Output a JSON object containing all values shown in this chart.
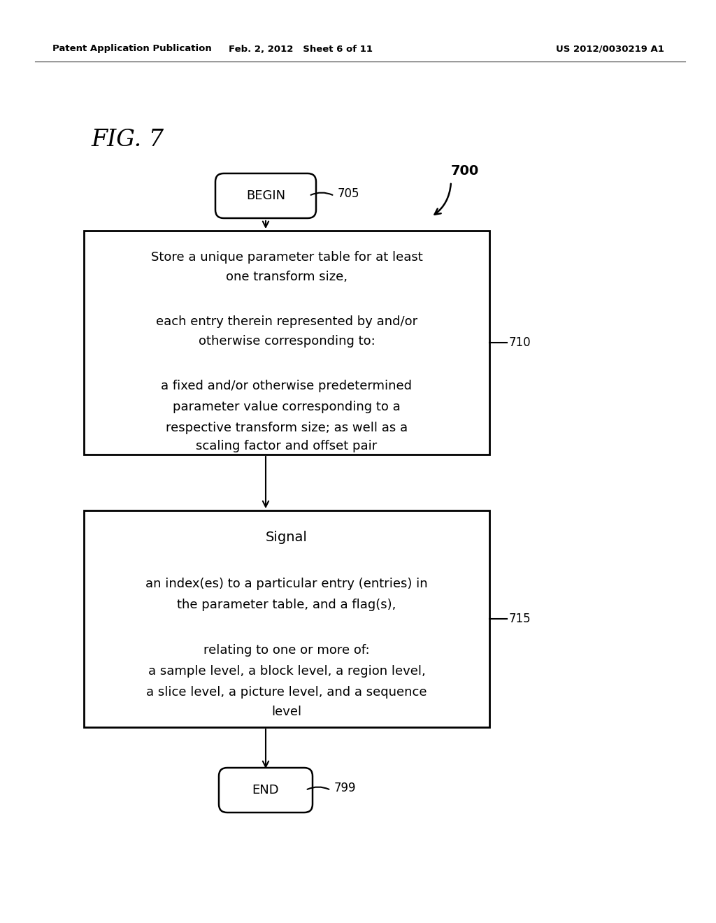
{
  "header_left": "Patent Application Publication",
  "header_center": "Feb. 2, 2012   Sheet 6 of 11",
  "header_right": "US 2012/0030219 A1",
  "fig_label": "FIG. 7",
  "begin_label": "BEGIN",
  "begin_ref": "705",
  "flow_ref": "700",
  "box1_lines": [
    "Store a unique parameter table for at least",
    "one transform size,",
    "",
    "each entry therein represented by and/or",
    "otherwise corresponding to:",
    "",
    "a fixed and/or otherwise predetermined",
    "parameter value corresponding to a",
    "respective transform size; as well as a",
    "scaling factor and offset pair"
  ],
  "box1_ref": "710",
  "box2_lines": [
    "Signal",
    "",
    "an index(es) to a particular entry (entries) in",
    "the parameter table, and a flag(s),",
    "",
    "relating to one or more of:",
    "a sample level, a block level, a region level,",
    "a slice level, a picture level, and a sequence",
    "level"
  ],
  "box2_ref": "715",
  "end_label": "END",
  "end_ref": "799",
  "bg_color": "#ffffff",
  "text_color": "#000000",
  "box_color": "#000000"
}
